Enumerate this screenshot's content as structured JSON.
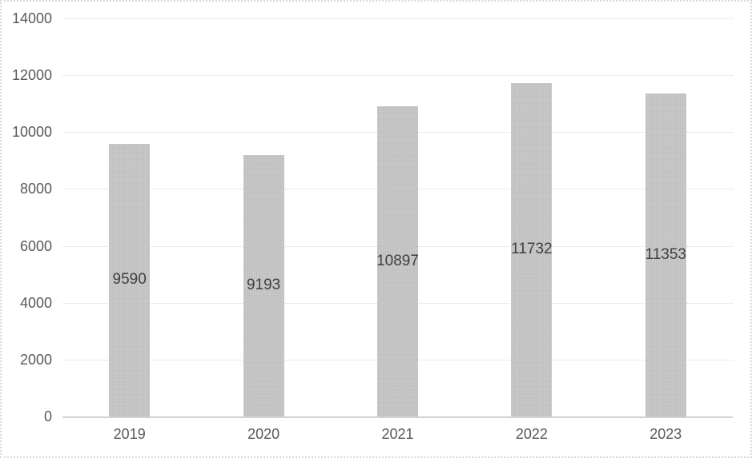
{
  "window": {
    "background_color": "#ffffff",
    "frame_border_color": "#d9d9d9"
  },
  "chart_data": {
    "type": "bar",
    "title": "",
    "xlabel": "",
    "ylabel": "",
    "categories": [
      "2019",
      "2020",
      "2021",
      "2022",
      "2023"
    ],
    "values": [
      9590,
      9193,
      10897,
      11732,
      11353
    ],
    "data_labels": [
      "9590",
      "9193",
      "10897",
      "11732",
      "11353"
    ],
    "data_label_position": "inside-center",
    "ylim": [
      0,
      14000
    ],
    "yticks": [
      0,
      2000,
      4000,
      6000,
      8000,
      10000,
      12000,
      14000
    ],
    "ytick_labels": [
      "0",
      "2000",
      "4000",
      "6000",
      "8000",
      "10000",
      "12000",
      "14000"
    ],
    "grid": "horizontal-dotted",
    "legend": "none",
    "bar_color": "#c9c9c9",
    "bar_texture_dot_color": "#bcbcbc",
    "gridline_color": "#d6d6d6",
    "axis_line_color": "#d2d2d2",
    "axis_label_color": "#595959",
    "data_label_color": "#404040"
  }
}
